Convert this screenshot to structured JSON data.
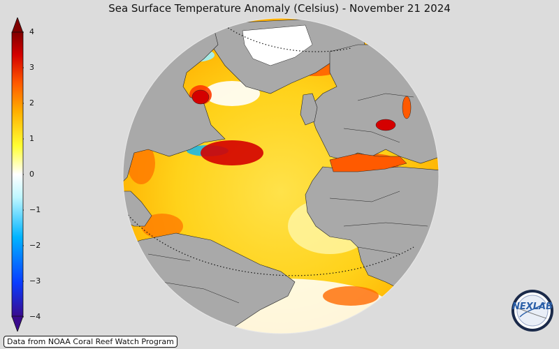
{
  "title": "Sea Surface Temperature Anomaly (Celsius) - November 21 2024",
  "colorbar": {
    "ticks": [
      {
        "value": 4,
        "label": "4"
      },
      {
        "value": 3,
        "label": "3"
      },
      {
        "value": 2,
        "label": "2"
      },
      {
        "value": 1,
        "label": "1"
      },
      {
        "value": 0,
        "label": "0"
      },
      {
        "value": -1,
        "label": "−1"
      },
      {
        "value": -2,
        "label": "−2"
      },
      {
        "value": -3,
        "label": "−3"
      },
      {
        "value": -4,
        "label": "−4"
      }
    ],
    "min": -4,
    "max": 4,
    "colors": [
      "#3a0a8c",
      "#0a3cff",
      "#00b4ff",
      "#bff7ff",
      "#ffffff",
      "#ffff33",
      "#ffb000",
      "#ff5a00",
      "#d40000",
      "#800000"
    ]
  },
  "credit": "Data from NOAA Coral Reef Watch Program",
  "logo_text": "NEXLAB",
  "map_colors": {
    "land": "#a9a9a9",
    "border": "#222222",
    "warm": "#ffd21a",
    "hot": "#ff5a00",
    "very_hot": "#d40000",
    "cool": "#9ff3ff",
    "neutral": "#ffffff"
  }
}
